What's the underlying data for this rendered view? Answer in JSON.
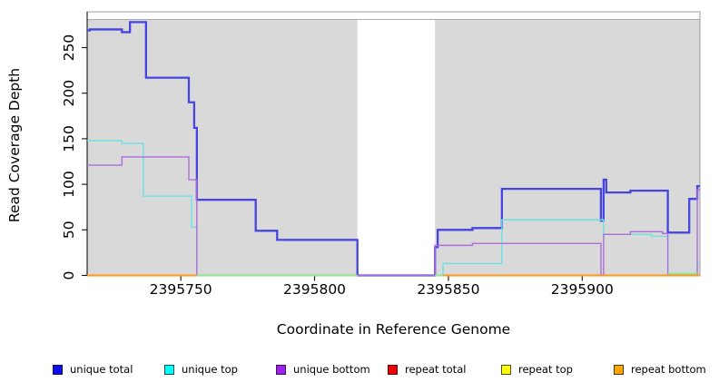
{
  "legend": {
    "items": [
      {
        "label": "unique total",
        "color": "#0d0dee"
      },
      {
        "label": "unique top",
        "color": "#00ffff"
      },
      {
        "label": "unique bottom",
        "color": "#a020f0"
      },
      {
        "label": "repeat total",
        "color": "#ee0000"
      },
      {
        "label": "repeat top",
        "color": "#ffff00"
      },
      {
        "label": "repeat bottom",
        "color": "#ffa500"
      }
    ]
  },
  "chart_data": {
    "type": "line",
    "subtype": "step-coverage",
    "xlabel": "Coordinate in Reference Genome",
    "ylabel": "Read Coverage Depth",
    "xlim": [
      2395715,
      2395944
    ],
    "ylim": [
      0,
      281
    ],
    "x_ticks": [
      2395750,
      2395800,
      2395850,
      2395900
    ],
    "y_ticks": [
      0,
      50,
      100,
      150,
      200,
      250
    ],
    "grid": false,
    "legend_position": "bottom",
    "panel_color": "#d9d9d9",
    "masked_region": [
      2395816,
      2395845
    ],
    "background_regions": [
      [
        2395715,
        2395816
      ],
      [
        2395845,
        2395944
      ]
    ],
    "series": [
      {
        "name": "repeat total",
        "color": "#ee0000",
        "width": 1.2,
        "segments": [
          [
            2395715,
            2395816,
            0
          ],
          [
            2395845,
            2395944,
            0
          ]
        ]
      },
      {
        "name": "repeat top",
        "color": "#f2f200",
        "width": 1.2,
        "segments": [
          [
            2395715,
            2395816,
            0
          ],
          [
            2395845,
            2395944,
            0
          ]
        ]
      },
      {
        "name": "repeat bottom",
        "color": "#ff9818",
        "width": 1.7,
        "segments": [
          [
            2395715,
            2395816,
            0
          ],
          [
            2395845,
            2395944,
            0
          ]
        ]
      },
      {
        "name": "unique total",
        "color": "#4645e2",
        "width": 2.3,
        "segments": [
          [
            2395715,
            2395716,
            269
          ],
          [
            2395716,
            2395728,
            270
          ],
          [
            2395728,
            2395731,
            267
          ],
          [
            2395731,
            2395737,
            278
          ],
          [
            2395737,
            2395753,
            217
          ],
          [
            2395753,
            2395755,
            190
          ],
          [
            2395755,
            2395756,
            162
          ],
          [
            2395756,
            2395778,
            83
          ],
          [
            2395778,
            2395786,
            49
          ],
          [
            2395786,
            2395816,
            39
          ],
          [
            2395816,
            2395845,
            0
          ],
          [
            2395845,
            2395846,
            31
          ],
          [
            2395846,
            2395859,
            50
          ],
          [
            2395859,
            2395870,
            52
          ],
          [
            2395870,
            2395907,
            95
          ],
          [
            2395907,
            2395908,
            60
          ],
          [
            2395908,
            2395909,
            105
          ],
          [
            2395909,
            2395918,
            91
          ],
          [
            2395918,
            2395932,
            93
          ],
          [
            2395932,
            2395940,
            47
          ],
          [
            2395940,
            2395943,
            84
          ],
          [
            2395943,
            2395944,
            98
          ]
        ]
      },
      {
        "name": "unique top",
        "color": "#68e2e2",
        "width": 1.4,
        "segments": [
          [
            2395715,
            2395728,
            148
          ],
          [
            2395728,
            2395736,
            145
          ],
          [
            2395736,
            2395754,
            87
          ],
          [
            2395754,
            2395756,
            53
          ],
          [
            2395756,
            2395816,
            0
          ],
          [
            2395845,
            2395848,
            0
          ],
          [
            2395848,
            2395870,
            13
          ],
          [
            2395870,
            2395908,
            61
          ],
          [
            2395908,
            2395926,
            45
          ],
          [
            2395926,
            2395932,
            43
          ],
          [
            2395932,
            2395943,
            2
          ],
          [
            2395943,
            2395944,
            14
          ]
        ]
      },
      {
        "name": "unique bottom",
        "color": "#ad6edb",
        "width": 1.4,
        "segments": [
          [
            2395715,
            2395728,
            121
          ],
          [
            2395728,
            2395753,
            130
          ],
          [
            2395753,
            2395756,
            105
          ],
          [
            2395756,
            2395845,
            0
          ],
          [
            2395845,
            2395859,
            33
          ],
          [
            2395859,
            2395907,
            35
          ],
          [
            2395907,
            2395908,
            0
          ],
          [
            2395908,
            2395918,
            45
          ],
          [
            2395918,
            2395930,
            48
          ],
          [
            2395930,
            2395932,
            46
          ],
          [
            2395932,
            2395943,
            0
          ],
          [
            2395943,
            2395944,
            94
          ]
        ]
      }
    ],
    "zero_overlays": [
      {
        "x1": 2395715,
        "x2": 2395756,
        "y": 0,
        "color": "#ff9818"
      },
      {
        "x1": 2395756,
        "x2": 2395816,
        "y": 0,
        "color": "#8fe88f"
      },
      {
        "x1": 2395845,
        "x2": 2395848,
        "y": 0,
        "color": "#8fe88f"
      },
      {
        "x1": 2395848,
        "x2": 2395944,
        "y": 0,
        "color": "#ff9818"
      },
      {
        "x1": 2395932,
        "x2": 2395943,
        "y": 2,
        "color": "#8fe88f"
      }
    ]
  }
}
